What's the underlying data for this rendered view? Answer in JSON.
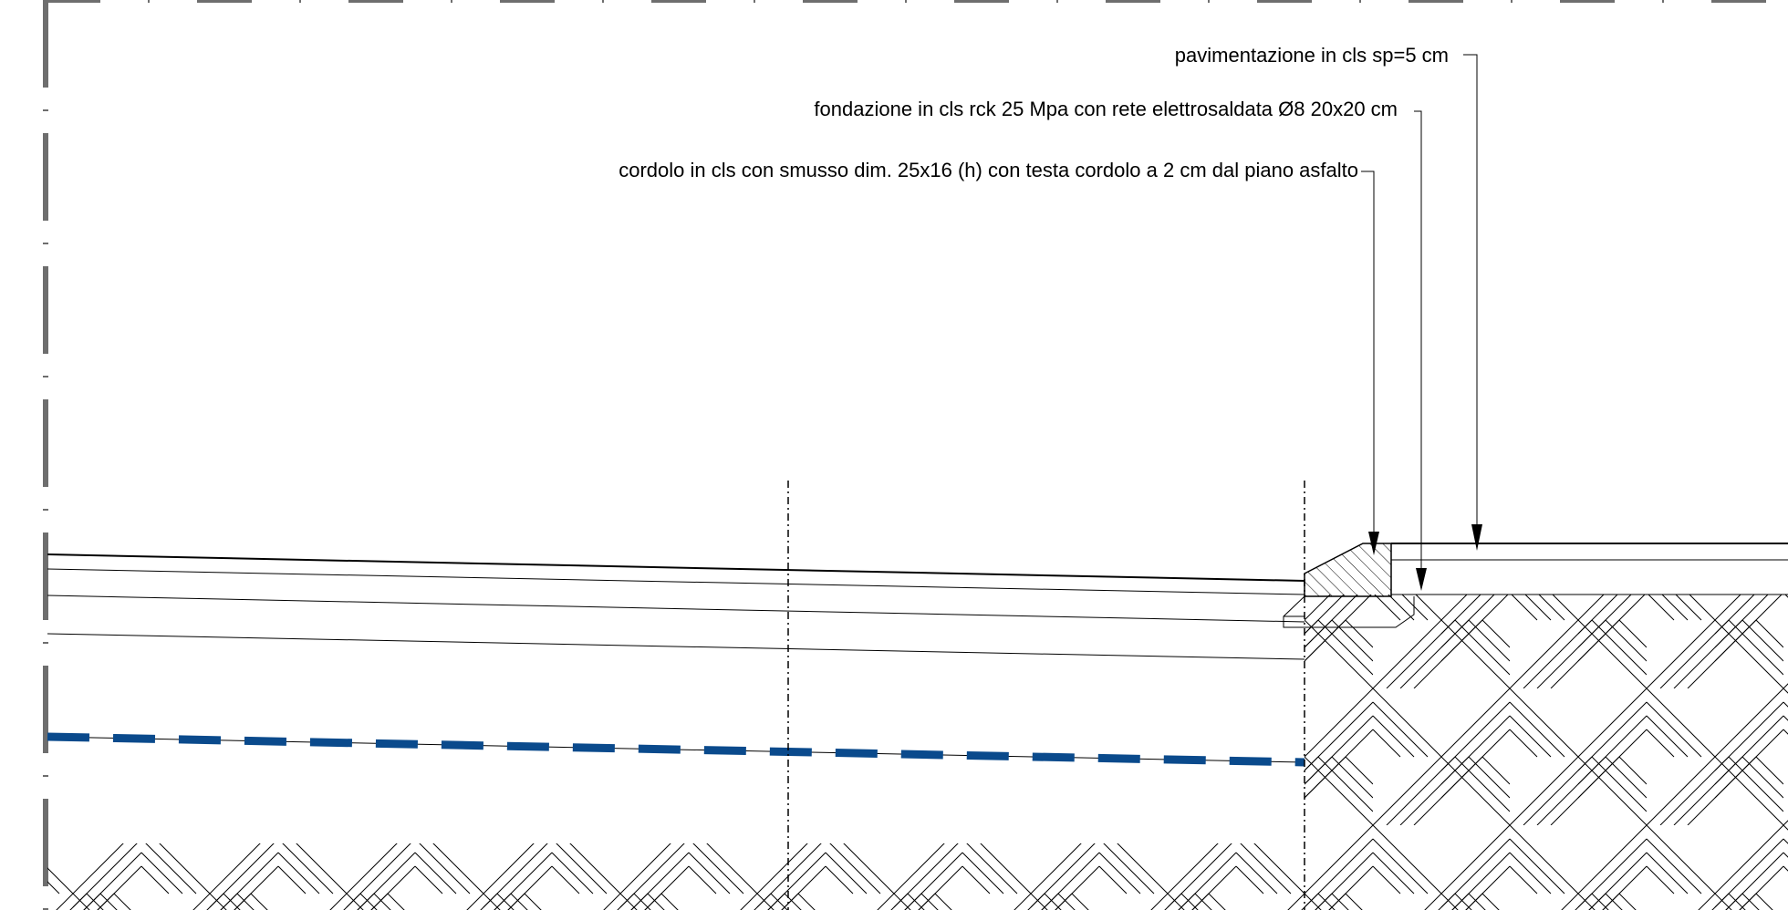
{
  "annotations": {
    "pavimentazione": "pavimentazione in cls sp=5 cm",
    "fondazione": "fondazione in cls rck 25 Mpa con rete elettrosaldata Ø8 20x20 cm",
    "cordolo": "cordolo in cls con smusso dim. 25x16 (h) con testa cordolo a 2 cm dal piano asfalto"
  },
  "colors": {
    "line": "#000000",
    "frame": "#6e6e6e",
    "pipe": "#0a4a8c"
  }
}
